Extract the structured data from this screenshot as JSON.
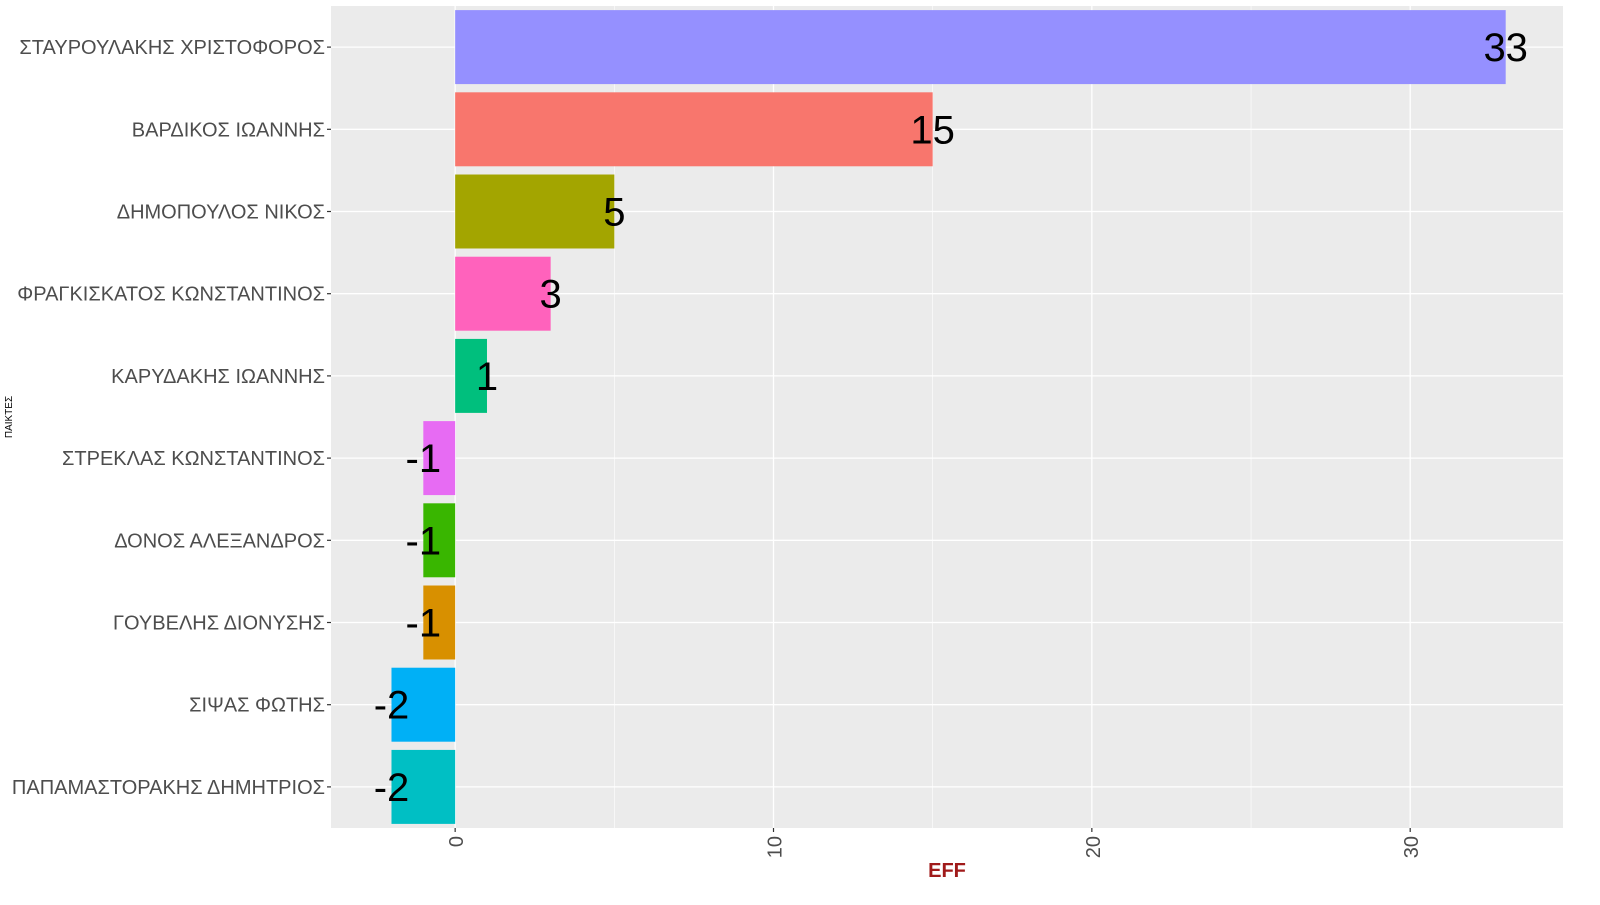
{
  "chart_data": {
    "type": "bar",
    "orientation": "horizontal",
    "xlabel": "EFF",
    "ylabel": "ΠΑΙΚΤΕΣ",
    "xlim": [
      -3.9,
      34.8
    ],
    "xticks": [
      0,
      10,
      20,
      30
    ],
    "xtick_labels": [
      "0",
      "10",
      "20",
      "30"
    ],
    "grid": true,
    "background": "#EBEBEB",
    "gridline_color": "#FFFFFF",
    "xlabel_color": "#A01A1A",
    "categories": [
      "ΣΤΑΥΡΟΥΛΑΚΗΣ ΧΡΙΣΤΟΦΟΡΟΣ",
      "ΒΑΡΔΙΚΟΣ ΙΩΑΝΝΗΣ",
      "ΔΗΜΟΠΟΥΛΟΣ ΝΙΚΟΣ",
      "ΦΡΑΓΚΙΣΚΑΤΟΣ ΚΩΝΣΤΑΝΤΙΝΟΣ",
      "ΚΑΡΥΔΑΚΗΣ ΙΩΑΝΝΗΣ",
      "ΣΤΡΕΚΛΑΣ ΚΩΝΣΤΑΝΤΙΝΟΣ",
      "ΔΟΝΟΣ ΑΛΕΞΑΝΔΡΟΣ",
      "ΓΟΥΒΕΛΗΣ ΔΙΟΝΥΣΗΣ",
      "ΣΙΨΑΣ ΦΩΤΗΣ",
      "ΠΑΠΑΜΑΣΤΟΡΑΚΗΣ ΔΗΜΗΤΡΙΟΣ"
    ],
    "values": [
      33,
      15,
      5,
      3,
      1,
      -1,
      -1,
      -1,
      -2,
      -2
    ],
    "data_labels": [
      "33",
      "15",
      "5",
      "3",
      "1",
      "-1",
      "-1",
      "-1",
      "-2",
      "-2"
    ],
    "colors": [
      "#9590FF",
      "#F8766D",
      "#A3A500",
      "#FF62BC",
      "#00BF7D",
      "#E76BF3",
      "#39B600",
      "#D89000",
      "#00B0F6",
      "#00BFC4"
    ]
  }
}
